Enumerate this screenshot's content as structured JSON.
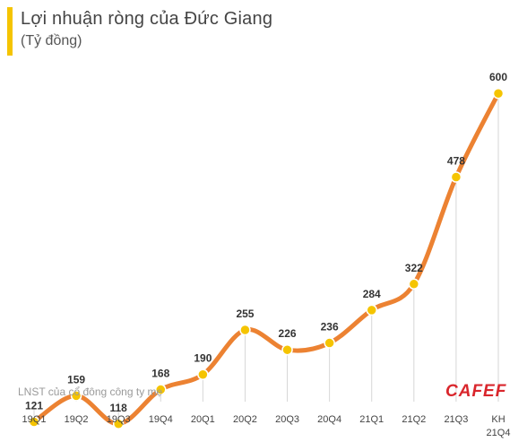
{
  "header": {
    "title": "Lợi nhuận ròng của Đức Giang",
    "subtitle": "(Tỷ đồng)"
  },
  "footnote": "LNST của cổ đông công ty mẹ",
  "logo_text": "CAFEF",
  "colors": {
    "line": "#ec8232",
    "marker": "#f5c400",
    "title_bar": "#f5c400",
    "logo": "#d9262c"
  },
  "chart_data": {
    "type": "line",
    "title": "Lợi nhuận ròng của Đức Giang",
    "subtitle": "(Tỷ đồng)",
    "categories": [
      "19Q1",
      "19Q2",
      "19Q3",
      "19Q4",
      "20Q1",
      "20Q2",
      "20Q3",
      "20Q4",
      "21Q1",
      "21Q2",
      "21Q3",
      "KH 21Q4"
    ],
    "series": [
      {
        "values": [
          121,
          159,
          118,
          168,
          190,
          255,
          226,
          236,
          284,
          322,
          478,
          600
        ]
      }
    ],
    "data_labels": [
      "121",
      "159",
      "118",
      "168",
      "190",
      "255",
      "226",
      "236",
      "284",
      "322",
      "478",
      "600"
    ],
    "ylim": [
      0,
      600
    ],
    "grid": false,
    "drop_lines": true,
    "smooth": true
  }
}
